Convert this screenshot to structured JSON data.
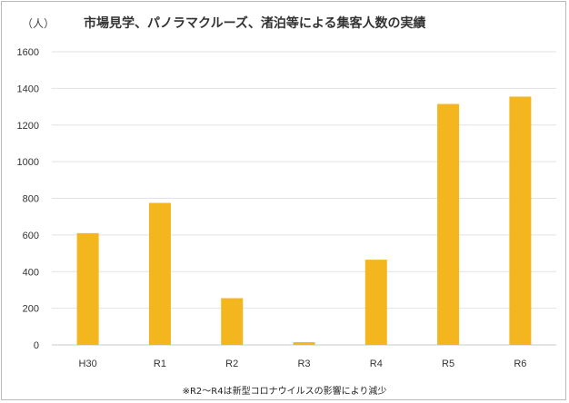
{
  "chart_data": {
    "type": "bar",
    "title": "市場見学、パノラマクルーズ、渚泊等による集客人数の実績",
    "unit_label": "（人）",
    "categories": [
      "H30",
      "R1",
      "R2",
      "R3",
      "R4",
      "R5",
      "R6"
    ],
    "values": [
      610,
      775,
      255,
      15,
      465,
      1315,
      1355
    ],
    "ylim": [
      0,
      1600
    ],
    "yticks": [
      0,
      200,
      400,
      600,
      800,
      1000,
      1200,
      1400,
      1600
    ],
    "grid": true,
    "bar_color": "#f3b61f",
    "note": "※R2～R4は新型コロナウイルスの影響により減少"
  }
}
